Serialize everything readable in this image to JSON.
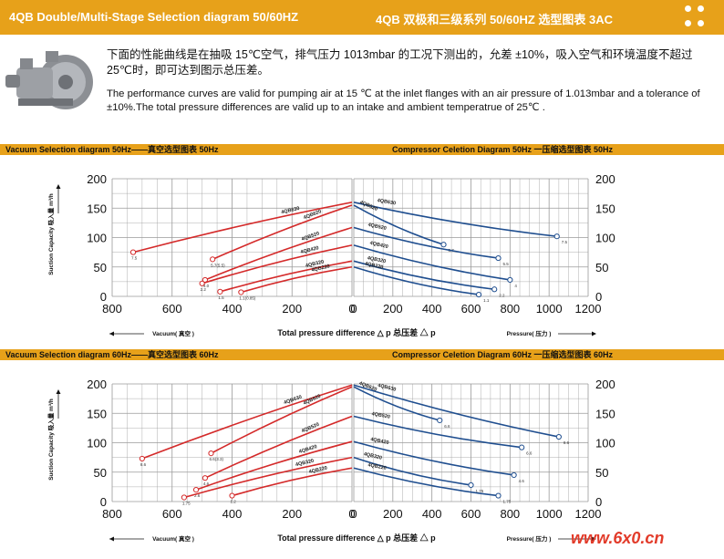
{
  "header": {
    "title_en": "4QB Double/Multi-Stage Selection diagram 50/60HZ",
    "title_cn": "4QB 双极和三级系列 50/60HZ  选型图表  3AC",
    "icon": "four-dots-icon"
  },
  "intro": {
    "cn": "下面的性能曲线是在抽吸 15℃空气，排气压力 1013mbar 的工况下测出的，允差 ±10%，吸入空气和环境温度不超过 25℃时，即可达到图示总压差。",
    "en": "The performance curves are valid for pumping air at 15 ℃ at the inlet flanges with an air pressure of 1.013mbar and a tolerance of ±10%.The total pressure differences are valid up to an intake and ambient temperatrue of 25℃ ."
  },
  "bands": [
    {
      "left": "Vacuum Selection diagram 50Hz——真空选型图表 50Hz",
      "right": "Compressor Celetion Diagram 50Hz 一压缩选型图表 50Hz"
    },
    {
      "left": "Vacuum Selection diagram 60Hz——真空选型图表 60Hz",
      "right": "Compressor Celetion Diagram 60Hz 一压缩选型图表 60Hz"
    }
  ],
  "watermark": "www.6x0.cn",
  "colors": {
    "accent": "#e7a11a",
    "vacuum": "#d42a2a",
    "compressor": "#1f4e8f",
    "grid": "#9a9a9a"
  },
  "chart_data": [
    {
      "type": "line",
      "panel": "vacuum-50hz",
      "x_ticks": [
        "800",
        "600",
        "400",
        "200",
        "0"
      ],
      "y_ticks": [
        "0",
        "50",
        "100",
        "150",
        "200"
      ],
      "xlim": [
        800,
        0
      ],
      "ylim": [
        0,
        200
      ],
      "xlabel": "Vacuum( 真空 )",
      "ylabel": "Suction Capacity 吸入量   m³/h",
      "center_label": "Total pressure difference △ p 总压差 △ p",
      "series": [
        {
          "name": "4QB630",
          "x": [
            730,
            0
          ],
          "y": [
            75,
            160
          ],
          "end_label": "7.5"
        },
        {
          "name": "4QB620",
          "x": [
            465,
            0
          ],
          "y": [
            63,
            155
          ],
          "end_label": "5.7(5.5)"
        },
        {
          "name": "4QB520",
          "x": [
            490,
            0
          ],
          "y": [
            28,
            117
          ],
          "end_label": "4.0"
        },
        {
          "name": "4QB420",
          "x": [
            500,
            0
          ],
          "y": [
            22,
            87
          ],
          "end_label": "2.2"
        },
        {
          "name": "4QB320",
          "x": [
            440,
            0
          ],
          "y": [
            8,
            60
          ],
          "end_label": "1.5"
        },
        {
          "name": "4QB220",
          "x": [
            370,
            0
          ],
          "y": [
            7,
            50
          ],
          "end_label": "1.1(0.85)"
        }
      ]
    },
    {
      "type": "line",
      "panel": "compressor-50hz",
      "x_ticks": [
        "0",
        "200",
        "400",
        "600",
        "800",
        "1000",
        "1200"
      ],
      "y_ticks": [
        "0",
        "50",
        "100",
        "150",
        "200"
      ],
      "xlim": [
        0,
        1200
      ],
      "ylim": [
        0,
        200
      ],
      "xlabel": "Pressure( 压力 )",
      "series": [
        {
          "name": "4QB630",
          "x": [
            0,
            1040
          ],
          "y": [
            160,
            102
          ],
          "end_label": "7.5"
        },
        {
          "name": "4QB620",
          "x": [
            0,
            460
          ],
          "y": [
            155,
            88
          ],
          "end_label": "5.7"
        },
        {
          "name": "4QB520",
          "x": [
            0,
            740
          ],
          "y": [
            117,
            65
          ],
          "end_label": "5.5"
        },
        {
          "name": "4QB420",
          "x": [
            0,
            800
          ],
          "y": [
            87,
            28
          ],
          "end_label": "4"
        },
        {
          "name": "4QB320",
          "x": [
            0,
            720
          ],
          "y": [
            60,
            12
          ],
          "end_label": "2.2"
        },
        {
          "name": "4QB220",
          "x": [
            0,
            640
          ],
          "y": [
            50,
            3
          ],
          "end_label": "1.1"
        }
      ]
    },
    {
      "type": "line",
      "panel": "vacuum-60hz",
      "x_ticks": [
        "800",
        "600",
        "400",
        "200",
        "0"
      ],
      "y_ticks": [
        "0",
        "50",
        "100",
        "150",
        "200"
      ],
      "xlim": [
        800,
        0
      ],
      "ylim": [
        0,
        200
      ],
      "xlabel": "Vacuum( 真空 )",
      "ylabel": "Suction Capacity 吸入量   m³/h",
      "center_label": "Total pressure difference △ p 总压差 △ p",
      "series": [
        {
          "name": "4QB630",
          "x": [
            700,
            0
          ],
          "y": [
            73,
            198
          ],
          "end_label": "8.6"
        },
        {
          "name": "4QB620",
          "x": [
            470,
            0
          ],
          "y": [
            82,
            195
          ],
          "end_label": "6.6(3.3)"
        },
        {
          "name": "4QB520",
          "x": [
            490,
            0
          ],
          "y": [
            40,
            145
          ],
          "end_label": "4.6"
        },
        {
          "name": "4QB420",
          "x": [
            520,
            0
          ],
          "y": [
            20,
            102
          ],
          "end_label": "2.6"
        },
        {
          "name": "4QB320",
          "x": [
            560,
            0
          ],
          "y": [
            7,
            75
          ],
          "end_label": "1.75"
        },
        {
          "name": "4QB220",
          "x": [
            400,
            0
          ],
          "y": [
            10,
            57
          ],
          "end_label": "1.2"
        }
      ]
    },
    {
      "type": "line",
      "panel": "compressor-60hz",
      "x_ticks": [
        "0",
        "200",
        "400",
        "600",
        "800",
        "1000",
        "1200"
      ],
      "y_ticks": [
        "0",
        "50",
        "100",
        "150",
        "200"
      ],
      "xlim": [
        0,
        1200
      ],
      "ylim": [
        0,
        200
      ],
      "xlabel": "Pressure( 压力 )",
      "series": [
        {
          "name": "4QB630",
          "x": [
            0,
            1050
          ],
          "y": [
            198,
            110
          ],
          "end_label": "8.6"
        },
        {
          "name": "4QB620",
          "x": [
            0,
            440
          ],
          "y": [
            195,
            138
          ],
          "end_label": "6.6"
        },
        {
          "name": "4QB520",
          "x": [
            0,
            860
          ],
          "y": [
            145,
            92
          ],
          "end_label": "6.6"
        },
        {
          "name": "4QB420",
          "x": [
            0,
            820
          ],
          "y": [
            102,
            45
          ],
          "end_label": "4.6"
        },
        {
          "name": "4QB320",
          "x": [
            0,
            600
          ],
          "y": [
            75,
            28
          ],
          "end_label": "1.75"
        },
        {
          "name": "4QB220",
          "x": [
            0,
            740
          ],
          "y": [
            57,
            10
          ],
          "end_label": "1.75"
        }
      ]
    }
  ]
}
